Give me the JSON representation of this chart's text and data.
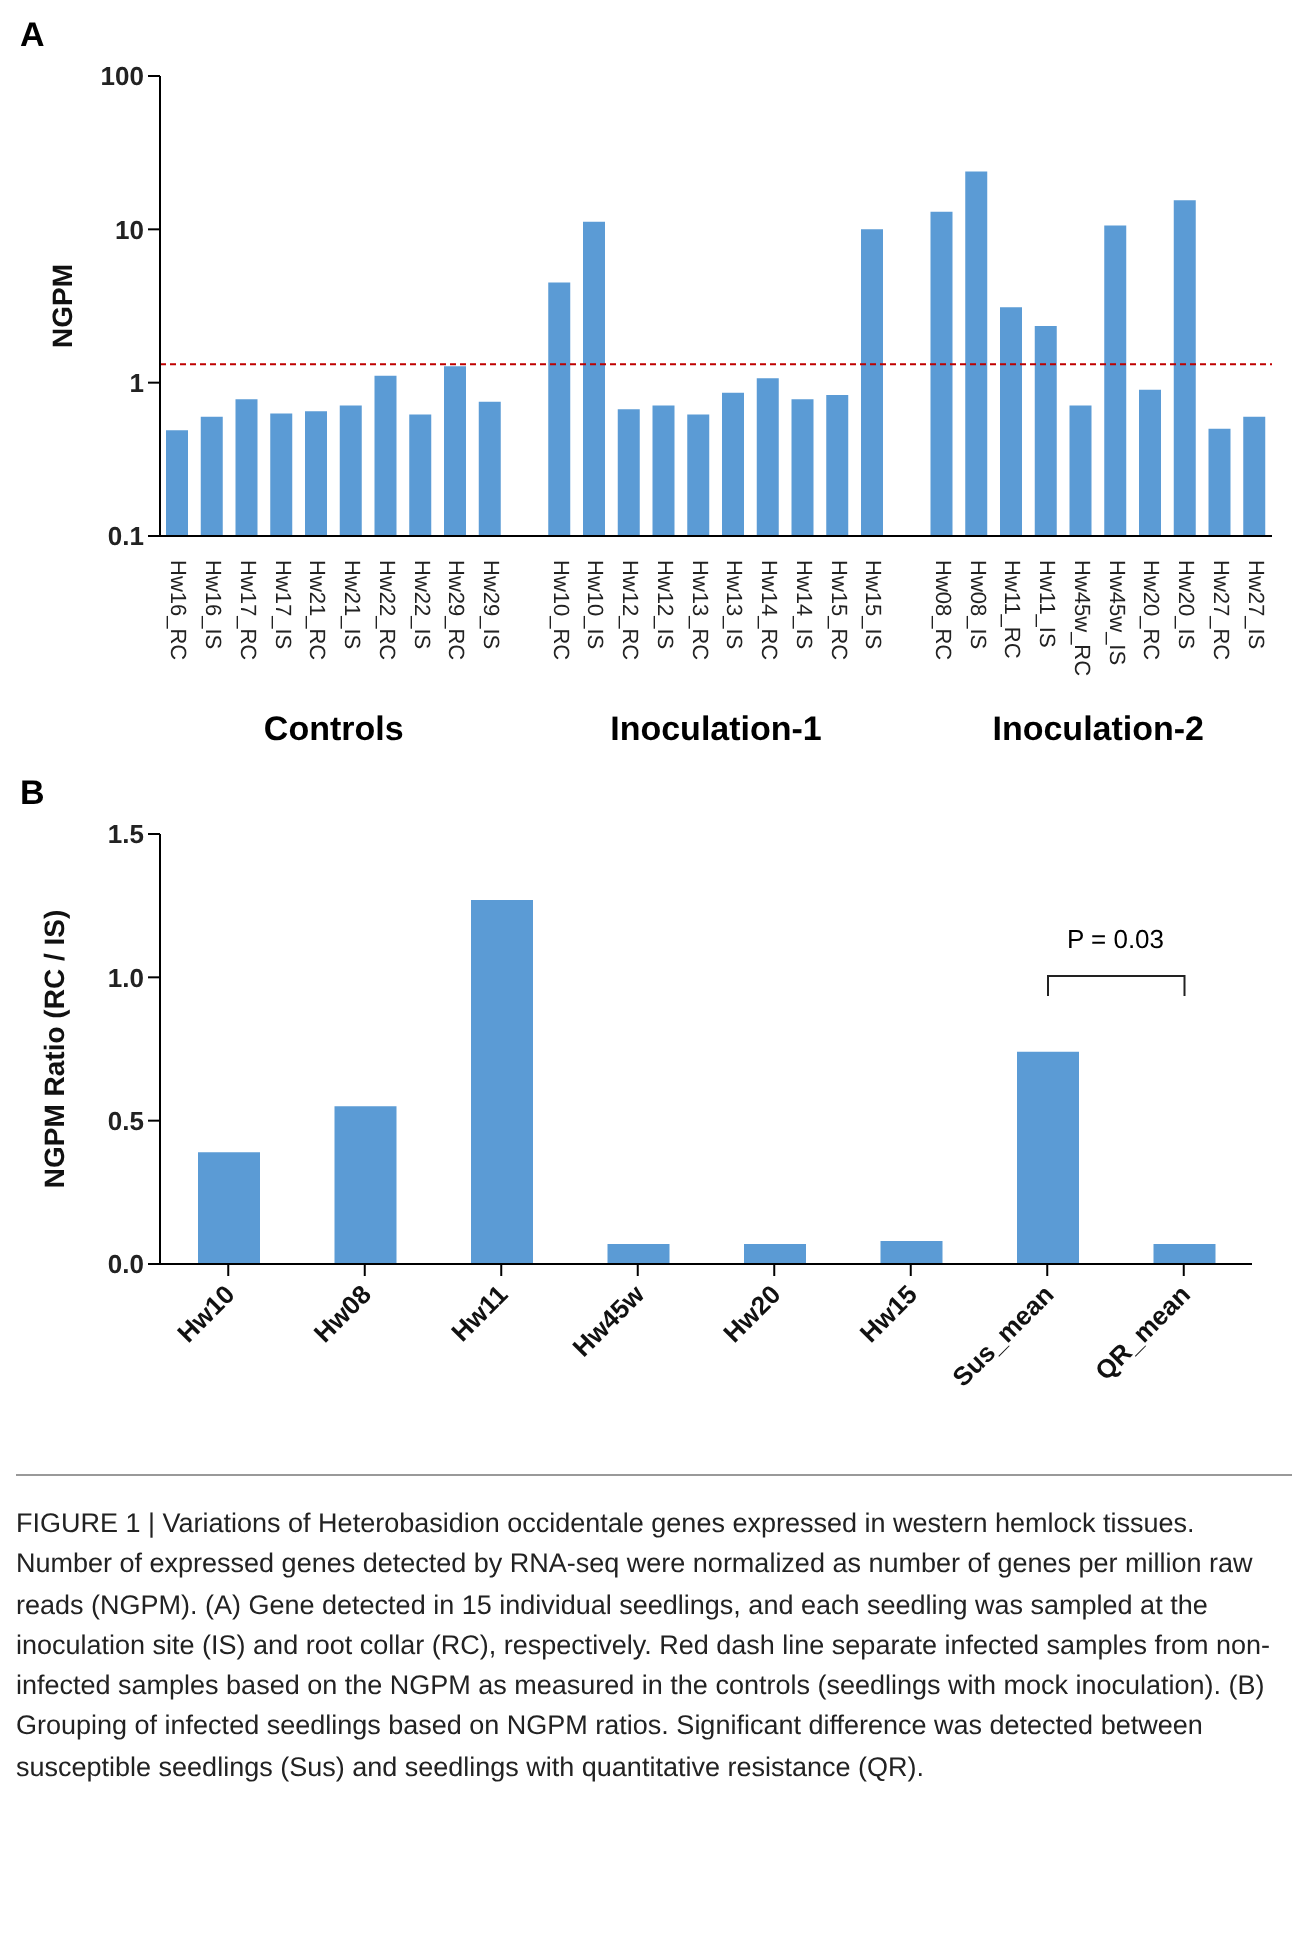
{
  "chart_data": [
    {
      "type": "bar",
      "title": "A",
      "ylabel": "NGPM",
      "log": true,
      "ylim": [
        0.1,
        100
      ],
      "yticks": [
        0.1,
        1,
        10,
        100
      ],
      "color": "#5b9bd5",
      "grid": false,
      "legend": false,
      "categories": [
        "Hw16_RC",
        "Hw16_IS",
        "Hw17_RC",
        "Hw17_IS",
        "Hw21_RC",
        "Hw21_IS",
        "Hw22_RC",
        "Hw22_IS",
        "Hw29_RC",
        "Hw29_IS",
        null,
        "Hw10_RC",
        "Hw10_IS",
        "Hw12_RC",
        "Hw12_IS",
        "Hw13_RC",
        "Hw13_IS",
        "Hw14_RC",
        "Hw14_IS",
        "Hw15_RC",
        "Hw15_IS",
        null,
        "Hw08_RC",
        "Hw08_IS",
        "Hw11_RC",
        "Hw11_IS",
        "Hw45w_RC",
        "Hw45w_IS",
        "Hw20_RC",
        "Hw20_IS",
        "Hw27_RC",
        "Hw27_IS"
      ],
      "values": [
        0.49,
        0.6,
        0.78,
        0.63,
        0.65,
        0.71,
        1.11,
        0.62,
        1.28,
        0.75,
        null,
        4.5,
        11.2,
        0.67,
        0.71,
        0.62,
        0.86,
        1.07,
        0.78,
        0.83,
        10.0,
        null,
        13.0,
        23.8,
        3.1,
        2.34,
        0.71,
        10.6,
        0.9,
        15.5,
        0.5,
        0.6
      ],
      "ref_lines": [
        {
          "axis": "y",
          "value": 1.32,
          "color": "#c00000",
          "line_style": "dashed"
        }
      ],
      "annotations": [
        "Controls",
        "Inoculation-1",
        "Inoculation-2"
      ]
    },
    {
      "type": "bar",
      "title": "B",
      "ylabel": "NGPM Ratio (RC / IS)",
      "ylim": [
        0,
        1.5
      ],
      "yticks": [
        {
          "value": 0,
          "label": "0.0"
        },
        1.5,
        {
          "value": 1,
          "label": "1.0"
        },
        0.5
      ],
      "color": "#5b9bd5",
      "grid": false,
      "legend": false,
      "categories": [
        "Hw10",
        "Hw08",
        "Hw11",
        "Hw45w",
        "Hw20",
        "Hw15",
        "Sus_mean",
        "QR_mean"
      ],
      "values": [
        0.39,
        0.55,
        1.27,
        0.07,
        0.07,
        0.08,
        0.74,
        0.07
      ],
      "annotations": [
        "P = 0.03",
        "FIGURE 1 | Variations of Heterobasidion occidentale genes expressed in western hemlock tissues. Number of expressed genes detected by RNA-seq were normalized as number of genes per million raw reads (NGPM). (A) Gene detected in 15 individual seedlings, and each seedling was sampled at the inoculation site (IS) and root collar (RC), respectively. Red dash line separate infected samples from non-infected samples based on the NGPM as measured in the controls (seedlings with mock inoculation). (B) Grouping of infected seedlings based on NGPM ratios. Significant difference was detected between susceptible seedlings (Sus) and seedlings with quantitative resistance (QR)."
      ]
    }
  ]
}
